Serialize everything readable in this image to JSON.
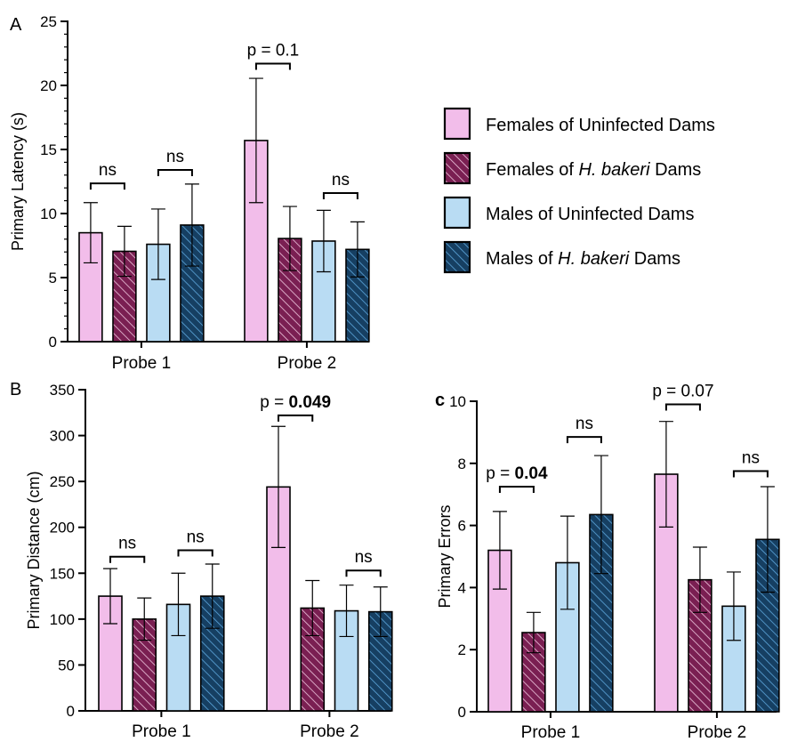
{
  "colors": {
    "females_uninfected": "#f2bdea",
    "females_hbakeri": "#7a1f52",
    "males_uninfected": "#b9dcf3",
    "males_hbakeri": "#163f62"
  },
  "legend": [
    {
      "label_parts": [
        {
          "text": "Females of Uninfected Dams",
          "italic": false
        }
      ],
      "color_key": "females_uninfected",
      "hatched": false
    },
    {
      "label_parts": [
        {
          "text": "Females of ",
          "italic": false
        },
        {
          "text": "H. bakeri",
          "italic": true
        },
        {
          "text": " Dams",
          "italic": false
        }
      ],
      "color_key": "females_hbakeri",
      "hatched": true
    },
    {
      "label_parts": [
        {
          "text": "Males of Uninfected Dams",
          "italic": false
        }
      ],
      "color_key": "males_uninfected",
      "hatched": false
    },
    {
      "label_parts": [
        {
          "text": "Males of ",
          "italic": false
        },
        {
          "text": "H. bakeri",
          "italic": true
        },
        {
          "text": " Dams",
          "italic": false
        }
      ],
      "color_key": "males_hbakeri",
      "hatched": true
    }
  ],
  "chart_data": [
    {
      "id": "A",
      "panel_letter": "A",
      "type": "bar",
      "ylabel": "Primary Latency (s)",
      "ylim": [
        0,
        25
      ],
      "yticks": [
        0,
        5,
        10,
        15,
        20,
        25
      ],
      "minor_ticks_per_major": 5,
      "categories": [
        "Probe 1",
        "Probe 2"
      ],
      "series": [
        {
          "key": "females_uninfected",
          "values": [
            8.5,
            15.7
          ],
          "errors": [
            2.35,
            4.85
          ]
        },
        {
          "key": "females_hbakeri",
          "values": [
            7.05,
            8.05
          ],
          "errors": [
            1.95,
            2.5
          ]
        },
        {
          "key": "males_uninfected",
          "values": [
            7.6,
            7.85
          ],
          "errors": [
            2.75,
            2.4
          ]
        },
        {
          "key": "males_hbakeri",
          "values": [
            9.1,
            7.2
          ],
          "errors": [
            3.2,
            2.15
          ]
        }
      ],
      "annotations": [
        {
          "category": 0,
          "pair": [
            0,
            1
          ],
          "y": 12.35,
          "parts": [
            {
              "text": "ns",
              "bold": false
            }
          ]
        },
        {
          "category": 0,
          "pair": [
            2,
            3
          ],
          "y": 13.4,
          "parts": [
            {
              "text": "ns",
              "bold": false
            }
          ]
        },
        {
          "category": 1,
          "pair": [
            0,
            1
          ],
          "y": 21.7,
          "parts": [
            {
              "text": "p = 0.1",
              "bold": false
            }
          ]
        },
        {
          "category": 1,
          "pair": [
            2,
            3
          ],
          "y": 11.6,
          "parts": [
            {
              "text": "ns",
              "bold": false
            }
          ]
        }
      ]
    },
    {
      "id": "B",
      "panel_letter": "B",
      "type": "bar",
      "ylabel": "Primary Distance (cm)",
      "ylim": [
        0,
        350
      ],
      "yticks": [
        0,
        50,
        100,
        150,
        200,
        250,
        300,
        350
      ],
      "minor_ticks_per_major": 1,
      "categories": [
        "Probe 1",
        "Probe 2"
      ],
      "series": [
        {
          "key": "females_uninfected",
          "values": [
            125,
            244
          ],
          "errors": [
            30,
            66
          ]
        },
        {
          "key": "females_hbakeri",
          "values": [
            100,
            112
          ],
          "errors": [
            23,
            30
          ]
        },
        {
          "key": "males_uninfected",
          "values": [
            116,
            109
          ],
          "errors": [
            34,
            28
          ]
        },
        {
          "key": "males_hbakeri",
          "values": [
            125,
            108
          ],
          "errors": [
            35,
            27
          ]
        }
      ],
      "annotations": [
        {
          "category": 0,
          "pair": [
            0,
            1
          ],
          "y": 168,
          "parts": [
            {
              "text": "ns",
              "bold": false
            }
          ]
        },
        {
          "category": 0,
          "pair": [
            2,
            3
          ],
          "y": 175,
          "parts": [
            {
              "text": "ns",
              "bold": false
            }
          ]
        },
        {
          "category": 1,
          "pair": [
            0,
            1
          ],
          "y": 322,
          "parts": [
            {
              "text": "p = ",
              "bold": false
            },
            {
              "text": "0.049",
              "bold": true
            }
          ]
        },
        {
          "category": 1,
          "pair": [
            2,
            3
          ],
          "y": 153,
          "parts": [
            {
              "text": "ns",
              "bold": false
            }
          ]
        }
      ]
    },
    {
      "id": "C",
      "panel_letter": "c",
      "type": "bar",
      "ylabel": "Primary Errors",
      "ylim": [
        0,
        10
      ],
      "yticks": [
        0,
        2,
        4,
        6,
        8,
        10
      ],
      "minor_ticks_per_major": 1,
      "categories": [
        "Probe 1",
        "Probe 2"
      ],
      "series": [
        {
          "key": "females_uninfected",
          "values": [
            5.2,
            7.65
          ],
          "errors": [
            1.25,
            1.7
          ]
        },
        {
          "key": "females_hbakeri",
          "values": [
            2.55,
            4.25
          ],
          "errors": [
            0.65,
            1.05
          ]
        },
        {
          "key": "males_uninfected",
          "values": [
            4.8,
            3.4
          ],
          "errors": [
            1.5,
            1.1
          ]
        },
        {
          "key": "males_hbakeri",
          "values": [
            6.35,
            5.55
          ],
          "errors": [
            1.9,
            1.7
          ]
        }
      ],
      "annotations": [
        {
          "category": 0,
          "pair": [
            0,
            1
          ],
          "y": 7.25,
          "parts": [
            {
              "text": "p = ",
              "bold": false
            },
            {
              "text": "0.04",
              "bold": true
            }
          ]
        },
        {
          "category": 0,
          "pair": [
            2,
            3
          ],
          "y": 8.85,
          "parts": [
            {
              "text": "ns",
              "bold": false
            }
          ]
        },
        {
          "category": 1,
          "pair": [
            0,
            1
          ],
          "y": 9.9,
          "parts": [
            {
              "text": "p = 0.07",
              "bold": false
            }
          ]
        },
        {
          "category": 1,
          "pair": [
            2,
            3
          ],
          "y": 7.75,
          "parts": [
            {
              "text": "ns",
              "bold": false
            }
          ]
        }
      ]
    }
  ]
}
